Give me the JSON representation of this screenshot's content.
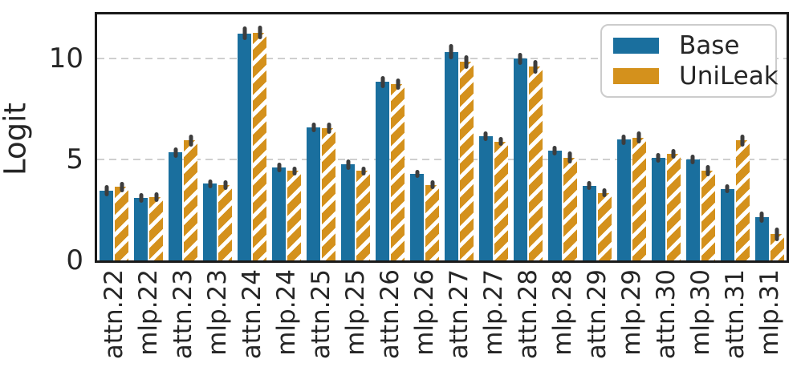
{
  "chart_data": {
    "type": "bar",
    "title": "",
    "xlabel": "",
    "ylabel": "Logit",
    "ylim": [
      0,
      12.2
    ],
    "yticks": [
      0,
      5,
      10
    ],
    "grid_values": [
      5,
      10
    ],
    "grid_style": "dashed",
    "legend_position": "upper right",
    "categories": [
      "attn.22",
      "mlp.22",
      "attn.23",
      "mlp.23",
      "attn.24",
      "mlp.24",
      "attn.25",
      "mlp.25",
      "attn.26",
      "mlp.26",
      "attn.27",
      "mlp.27",
      "attn.28",
      "mlp.28",
      "attn.29",
      "mlp.29",
      "attn.30",
      "mlp.30",
      "attn.31",
      "mlp.31"
    ],
    "series": [
      {
        "name": "Base",
        "color": "#1a6f9e",
        "hatch": "none",
        "values": [
          3.45,
          3.1,
          5.35,
          3.8,
          11.25,
          4.6,
          6.6,
          4.75,
          8.85,
          4.3,
          10.35,
          6.15,
          10.0,
          5.45,
          3.7,
          6.0,
          5.1,
          5.0,
          3.55,
          2.15
        ],
        "errors": [
          0.23,
          0.18,
          0.22,
          0.18,
          0.3,
          0.2,
          0.2,
          0.2,
          0.25,
          0.15,
          0.35,
          0.2,
          0.25,
          0.2,
          0.18,
          0.22,
          0.2,
          0.2,
          0.18,
          0.25
        ]
      },
      {
        "name": "UniLeak",
        "color": "#d4911c",
        "hatch": "/",
        "hatch_color": "#ffffff",
        "values": [
          3.65,
          3.15,
          5.95,
          3.75,
          11.3,
          4.45,
          6.55,
          4.45,
          8.75,
          3.75,
          9.85,
          5.9,
          9.6,
          5.1,
          3.35,
          6.1,
          5.3,
          4.45,
          5.95,
          1.3
        ],
        "errors": [
          0.22,
          0.2,
          0.25,
          0.2,
          0.3,
          0.18,
          0.25,
          0.18,
          0.25,
          0.18,
          0.3,
          0.18,
          0.3,
          0.25,
          0.18,
          0.25,
          0.2,
          0.25,
          0.25,
          0.3
        ]
      }
    ],
    "error_bar_color": "#3d3d3d",
    "grid_color": "#cfcfcf",
    "spine_color": "#1a1a1a",
    "background_color": "#ffffff",
    "text_color": "#262626"
  }
}
